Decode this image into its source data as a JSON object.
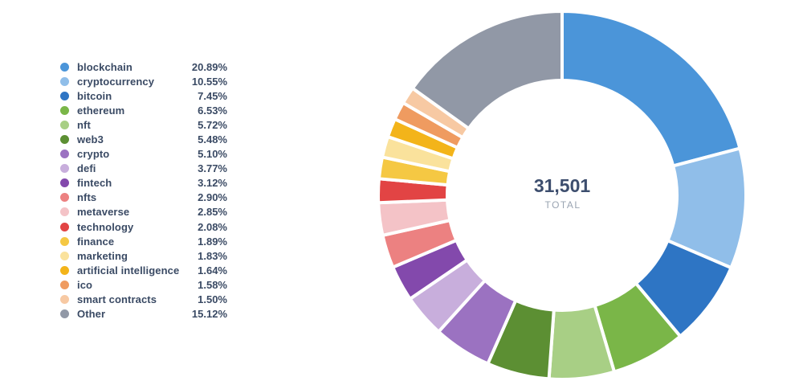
{
  "chart_data": {
    "type": "pie",
    "subtype": "donut",
    "title": "",
    "legend_position": "left",
    "start_angle_deg": 0,
    "direction": "clockwise",
    "center": {
      "value": "31,501",
      "label": "TOTAL"
    },
    "categories": [
      "blockchain",
      "cryptocurrency",
      "bitcoin",
      "ethereum",
      "nft",
      "web3",
      "crypto",
      "defi",
      "fintech",
      "nfts",
      "metaverse",
      "technology",
      "finance",
      "marketing",
      "artificial intelligence",
      "ico",
      "smart contracts",
      "Other"
    ],
    "values": [
      20.89,
      10.55,
      7.45,
      6.53,
      5.72,
      5.48,
      5.1,
      3.77,
      3.12,
      2.9,
      2.85,
      2.08,
      1.89,
      1.83,
      1.64,
      1.58,
      1.5,
      15.12
    ],
    "display_percents": [
      "20.89%",
      "10.55%",
      "7.45%",
      "6.53%",
      "5.72%",
      "5.48%",
      "5.10%",
      "3.77%",
      "3.12%",
      "2.90%",
      "2.85%",
      "2.08%",
      "1.89%",
      "1.83%",
      "1.64%",
      "1.58%",
      "1.50%",
      "15.12%"
    ],
    "colors": [
      "#4B95D9",
      "#90BEE9",
      "#2E75C4",
      "#7AB648",
      "#A8CF85",
      "#5C8F33",
      "#9B72C1",
      "#C8AEDC",
      "#8349AC",
      "#EC8181",
      "#F4C3C7",
      "#E24444",
      "#F5C843",
      "#FAE29C",
      "#F3B41A",
      "#EF9B60",
      "#F7C9A3",
      "#9198A6"
    ],
    "colors_meaning": "slice and legend dot fill colors, same order as categories",
    "gap_color": "#FFFFFF",
    "text_colors": {
      "legend_text": "#3A4A64",
      "center_value": "#3D4E6E",
      "center_label": "#9AA4B2"
    }
  }
}
